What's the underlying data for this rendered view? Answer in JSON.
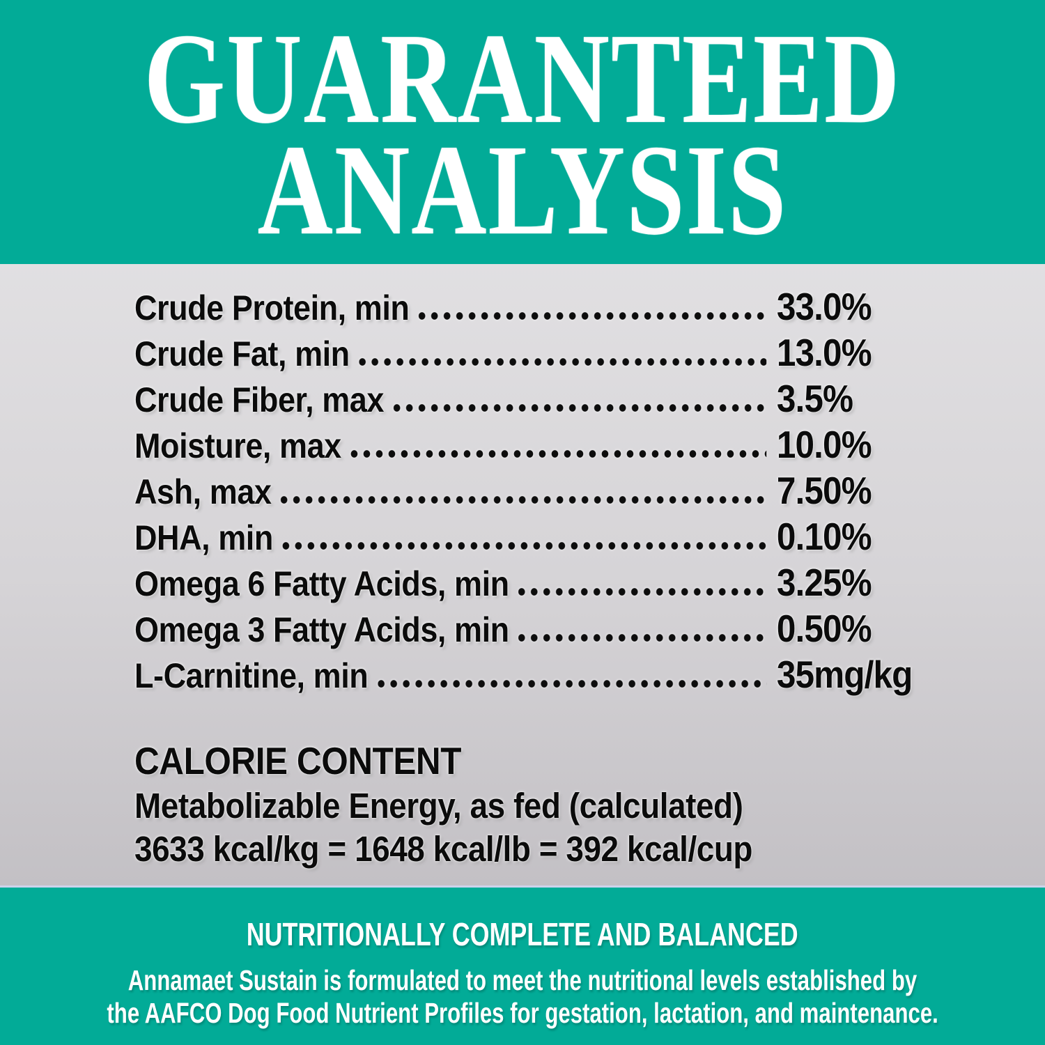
{
  "header": {
    "title_line1": "GUARANTEED",
    "title_line2": "ANALYSIS"
  },
  "analysis": {
    "rows": [
      {
        "label": "Crude Protein, min",
        "value": "33.0%"
      },
      {
        "label": "Crude Fat, min",
        "value": "13.0%"
      },
      {
        "label": "Crude Fiber, max",
        "value": "3.5%"
      },
      {
        "label": "Moisture, max",
        "value": "10.0%"
      },
      {
        "label": "Ash, max",
        "value": "7.50%"
      },
      {
        "label": "DHA, min",
        "value": "0.10%"
      },
      {
        "label": "Omega 6 Fatty Acids, min",
        "value": "3.25%"
      },
      {
        "label": "Omega 3 Fatty Acids, min",
        "value": "0.50%"
      },
      {
        "label": "L-Carnitine, min",
        "value": "35mg/kg"
      }
    ]
  },
  "calorie_content": {
    "heading": "CALORIE CONTENT",
    "line1": "Metabolizable Energy, as fed (calculated)",
    "line2": "3633 kcal/kg = 1648 kcal/lb = 392 kcal/cup"
  },
  "footer": {
    "heading": "NUTRITIONALLY COMPLETE AND BALANCED",
    "line1": "Annamaet Sustain is formulated to meet the nutritional levels established by",
    "line2": "the AAFCO Dog Food Nutrient Profiles for gestation, lactation, and maintenance."
  },
  "colors": {
    "teal": "#02ab97",
    "gray_top": "#e8e7e9",
    "gray_bottom": "#b9b6bb",
    "text_dark": "#0b0b0b",
    "text_light": "#ffffff"
  }
}
